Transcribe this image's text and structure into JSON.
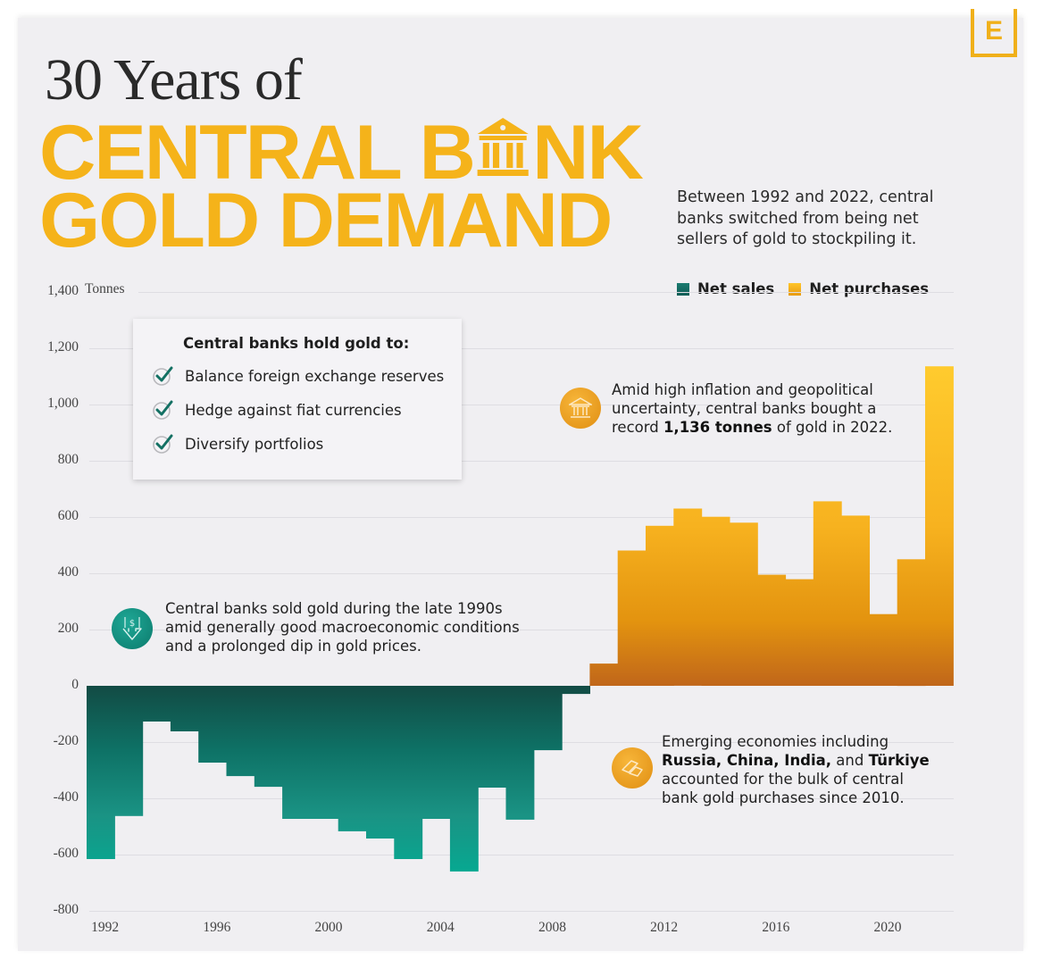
{
  "brand": {
    "logo_letter": "E",
    "accent": "#f5b31a"
  },
  "header": {
    "title_line1": "30 Years of",
    "title_line2_pre": "CENTRAL B",
    "title_line2_post": "NK",
    "title_line3": "GOLD DEMAND",
    "subtitle": "Between 1992 and 2022, central banks switched from being net sellers of gold to stockpiling it."
  },
  "legend": [
    {
      "label": "Net sales",
      "color": "#137063"
    },
    {
      "label": "Net purchases",
      "color": "#f7b21f"
    }
  ],
  "info_box": {
    "title": "Central banks hold gold to:",
    "items": [
      "Balance foreign exchange reserves",
      "Hedge against fiat currencies",
      "Diversify portfolios"
    ]
  },
  "annotations": {
    "sales": "Central banks sold gold during the late 1990s amid generally good macroeconomic conditions and a prolonged dip in gold prices.",
    "record_pre": "Amid high inflation and geopolitical uncertainty, central banks bought a record ",
    "record_bold": "1,136 tonnes",
    "record_post": " of gold in 2022.",
    "emerging_pre": "Emerging economies including ",
    "emerging_bold1": "Russia, China, India,",
    "emerging_mid": " and ",
    "emerging_bold2": "Türkiye",
    "emerging_post": " accounted for the bulk of central bank gold purchases since 2010."
  },
  "chart_data": {
    "type": "bar",
    "title": "30 Years of Central Bank Gold Demand",
    "xlabel": "",
    "ylabel": "Tonnes",
    "ylim": [
      -800,
      1400
    ],
    "yticks": [
      1400,
      1200,
      1000,
      800,
      600,
      400,
      200,
      0,
      -200,
      -400,
      -600,
      -800
    ],
    "ytick_labels": [
      "1,400",
      "1,200",
      "1,000",
      "800",
      "600",
      "400",
      "200",
      "0",
      "-200",
      "-400",
      "-600",
      "-800"
    ],
    "xtick_labels": [
      "1992",
      "1996",
      "2000",
      "2004",
      "2008",
      "2012",
      "2016",
      "2020"
    ],
    "grid": true,
    "legend_position": "top-right",
    "categories": [
      "1992",
      "1993",
      "1994",
      "1995",
      "1996",
      "1997",
      "1998",
      "1999",
      "2000",
      "2001",
      "2002",
      "2003",
      "2004",
      "2005",
      "2006",
      "2007",
      "2008",
      "2009",
      "2010",
      "2011",
      "2012",
      "2013",
      "2014",
      "2015",
      "2016",
      "2017",
      "2018",
      "2019",
      "2020",
      "2021",
      "2022"
    ],
    "values": [
      -616,
      -463,
      -127,
      -162,
      -273,
      -321,
      -359,
      -473,
      -473,
      -517,
      -543,
      -616,
      -473,
      -660,
      -362,
      -476,
      -229,
      -29,
      79,
      481,
      569,
      630,
      601,
      580,
      395,
      379,
      656,
      605,
      255,
      450,
      1136
    ],
    "series_colors": {
      "negative": "#137063",
      "positive": "#f7b21f"
    }
  }
}
